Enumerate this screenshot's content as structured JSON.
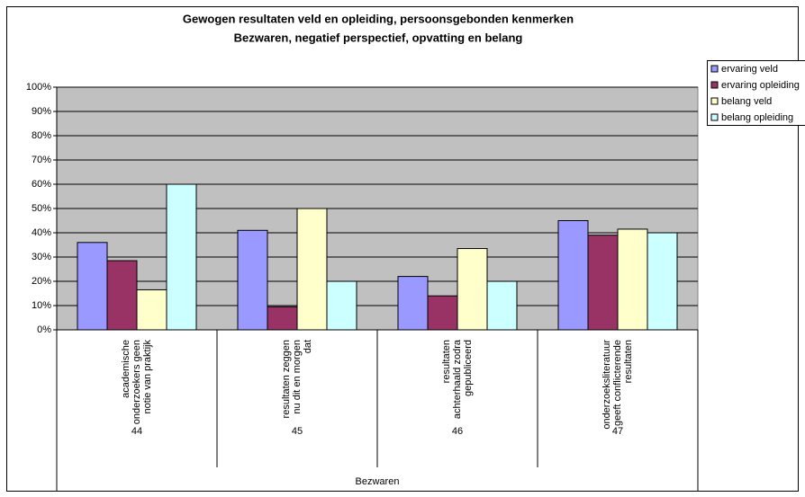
{
  "chart_data": {
    "type": "bar",
    "title": [
      "Gewogen resultaten veld en opleiding, persoonsgebonden kenmerken",
      "Bezwaren, negatief perspectief, opvatting en belang"
    ],
    "categories": [
      [
        "academische",
        "onderzoekers geen",
        "notie van praktijk"
      ],
      [
        "resultaten zeggen",
        "nu dit en morgen",
        "dat"
      ],
      [
        "resultaten",
        "achterhaald zodra",
        "gepubliceerd"
      ],
      [
        "onderzoeksliteratuur",
        "geeft conflicterende",
        "resultaten"
      ]
    ],
    "category_groups": [
      "44",
      "45",
      "46",
      "47"
    ],
    "x_label": "Bezwaren",
    "series": [
      {
        "name": "ervaring veld",
        "color": "#9999ff",
        "values": [
          36,
          41,
          22,
          45
        ]
      },
      {
        "name": "ervaring opleiding",
        "color": "#993366",
        "values": [
          28.5,
          9.5,
          14,
          39
        ]
      },
      {
        "name": "belang veld",
        "color": "#ffffcc",
        "values": [
          16.5,
          50,
          33.5,
          41.5
        ]
      },
      {
        "name": "belang opleiding",
        "color": "#ccffff",
        "values": [
          60,
          20,
          20,
          40
        ]
      }
    ],
    "ylim": [
      0,
      100
    ],
    "yticks": [
      {
        "value": 0,
        "label": "0%"
      },
      {
        "value": 10,
        "label": "10%"
      },
      {
        "value": 20,
        "label": "20%"
      },
      {
        "value": 30,
        "label": "30%"
      },
      {
        "value": 40,
        "label": "40%"
      },
      {
        "value": 50,
        "label": "50%"
      },
      {
        "value": 60,
        "label": "60%"
      },
      {
        "value": 70,
        "label": "70%"
      },
      {
        "value": 80,
        "label": "80%"
      },
      {
        "value": 90,
        "label": "90%"
      },
      {
        "value": 100,
        "label": "100%"
      }
    ],
    "grid": true,
    "plot_color": "#c0c0c0",
    "legend": "right"
  }
}
